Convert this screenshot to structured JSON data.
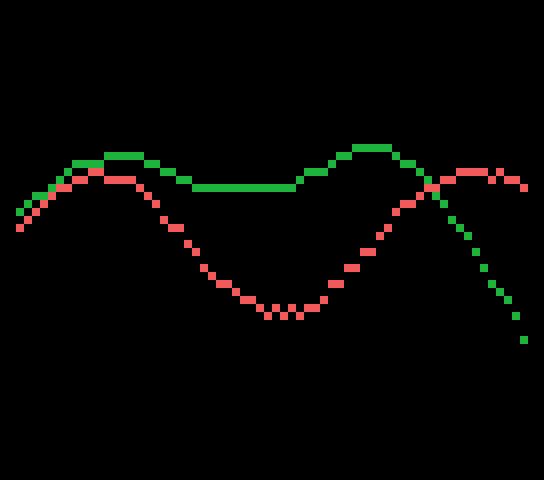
{
  "background_color": "#000000",
  "curves": [
    {
      "id": "green-curve",
      "color": "#1db33c",
      "points": [
        [
          16,
          208
        ],
        [
          24,
          200
        ],
        [
          32,
          192
        ],
        [
          40,
          192
        ],
        [
          48,
          184
        ],
        [
          56,
          176
        ],
        [
          64,
          168
        ],
        [
          72,
          160
        ],
        [
          80,
          160
        ],
        [
          88,
          160
        ],
        [
          96,
          160
        ],
        [
          104,
          152
        ],
        [
          112,
          152
        ],
        [
          120,
          152
        ],
        [
          128,
          152
        ],
        [
          136,
          152
        ],
        [
          144,
          160
        ],
        [
          152,
          160
        ],
        [
          160,
          168
        ],
        [
          168,
          168
        ],
        [
          176,
          176
        ],
        [
          184,
          176
        ],
        [
          192,
          184
        ],
        [
          200,
          184
        ],
        [
          208,
          184
        ],
        [
          216,
          184
        ],
        [
          224,
          184
        ],
        [
          232,
          184
        ],
        [
          240,
          184
        ],
        [
          248,
          184
        ],
        [
          256,
          184
        ],
        [
          264,
          184
        ],
        [
          272,
          184
        ],
        [
          280,
          184
        ],
        [
          288,
          184
        ],
        [
          296,
          176
        ],
        [
          304,
          168
        ],
        [
          312,
          168
        ],
        [
          320,
          168
        ],
        [
          328,
          160
        ],
        [
          336,
          152
        ],
        [
          344,
          152
        ],
        [
          352,
          144
        ],
        [
          360,
          144
        ],
        [
          368,
          144
        ],
        [
          376,
          144
        ],
        [
          384,
          144
        ],
        [
          392,
          152
        ],
        [
          400,
          160
        ],
        [
          408,
          160
        ],
        [
          416,
          168
        ],
        [
          424,
          176
        ],
        [
          432,
          192
        ],
        [
          440,
          200
        ],
        [
          448,
          216
        ],
        [
          456,
          224
        ],
        [
          464,
          232
        ],
        [
          472,
          248
        ],
        [
          480,
          264
        ],
        [
          488,
          280
        ],
        [
          496,
          288
        ],
        [
          504,
          296
        ],
        [
          512,
          312
        ],
        [
          520,
          336
        ]
      ]
    },
    {
      "id": "red-curve",
      "color": "#f25a5a",
      "points": [
        [
          16,
          224
        ],
        [
          24,
          216
        ],
        [
          32,
          208
        ],
        [
          40,
          200
        ],
        [
          48,
          192
        ],
        [
          56,
          184
        ],
        [
          64,
          184
        ],
        [
          72,
          176
        ],
        [
          80,
          176
        ],
        [
          88,
          168
        ],
        [
          96,
          168
        ],
        [
          104,
          176
        ],
        [
          112,
          176
        ],
        [
          120,
          176
        ],
        [
          128,
          176
        ],
        [
          136,
          184
        ],
        [
          144,
          192
        ],
        [
          152,
          200
        ],
        [
          160,
          216
        ],
        [
          168,
          224
        ],
        [
          176,
          224
        ],
        [
          184,
          240
        ],
        [
          192,
          248
        ],
        [
          200,
          264
        ],
        [
          208,
          272
        ],
        [
          216,
          280
        ],
        [
          224,
          280
        ],
        [
          232,
          288
        ],
        [
          240,
          296
        ],
        [
          248,
          296
        ],
        [
          256,
          304
        ],
        [
          264,
          312
        ],
        [
          272,
          304
        ],
        [
          280,
          312
        ],
        [
          288,
          304
        ],
        [
          296,
          312
        ],
        [
          304,
          304
        ],
        [
          312,
          304
        ],
        [
          320,
          296
        ],
        [
          328,
          280
        ],
        [
          336,
          280
        ],
        [
          344,
          264
        ],
        [
          352,
          264
        ],
        [
          360,
          248
        ],
        [
          368,
          248
        ],
        [
          376,
          232
        ],
        [
          384,
          224
        ],
        [
          392,
          208
        ],
        [
          400,
          200
        ],
        [
          408,
          200
        ],
        [
          416,
          192
        ],
        [
          424,
          184
        ],
        [
          432,
          184
        ],
        [
          440,
          176
        ],
        [
          448,
          176
        ],
        [
          456,
          168
        ],
        [
          464,
          168
        ],
        [
          472,
          168
        ],
        [
          480,
          168
        ],
        [
          488,
          176
        ],
        [
          496,
          168
        ],
        [
          504,
          176
        ],
        [
          512,
          176
        ],
        [
          520,
          184
        ]
      ]
    }
  ]
}
